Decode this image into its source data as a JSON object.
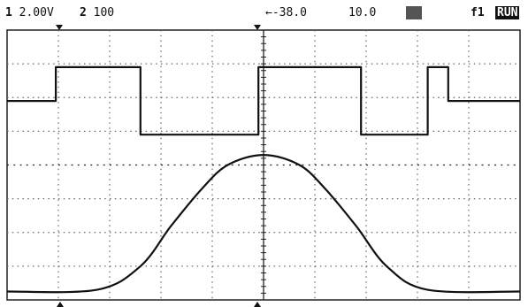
{
  "status": {
    "ch1_num": "1",
    "ch1_scale": "2.00V",
    "ch2_num": "2",
    "ch2_scale": "100",
    "delay": "←-38.0",
    "timebase": "10.0",
    "acq": "",
    "trig_source": "f1",
    "run_state": "RUN"
  },
  "scope": {
    "divisions_x": 10,
    "divisions_y": 8,
    "trace_color": "#111111",
    "grid_color": "#666666"
  },
  "chart_data": {
    "type": "line",
    "title": "",
    "xlabel": "",
    "ylabel": "",
    "xlim": [
      0,
      10
    ],
    "ylim": [
      0,
      8
    ],
    "series": [
      {
        "points": [
          [
            0,
            5.9
          ],
          [
            0.95,
            5.9
          ],
          [
            0.95,
            6.9
          ],
          [
            2.6,
            6.9
          ],
          [
            2.6,
            4.9
          ],
          [
            4.9,
            4.9
          ],
          [
            4.9,
            6.9
          ],
          [
            6.9,
            6.9
          ],
          [
            6.9,
            4.9
          ],
          [
            8.2,
            4.9
          ],
          [
            8.2,
            6.9
          ],
          [
            8.6,
            6.9
          ],
          [
            8.6,
            5.9
          ],
          [
            10,
            5.9
          ]
        ]
      },
      {
        "points": [
          [
            0,
            0.25
          ],
          [
            1.75,
            0.3
          ],
          [
            2.6,
            1.0
          ],
          [
            3.2,
            2.2
          ],
          [
            3.8,
            3.3
          ],
          [
            4.3,
            4.0
          ],
          [
            5.0,
            4.3
          ],
          [
            5.7,
            4.0
          ],
          [
            6.2,
            3.3
          ],
          [
            6.8,
            2.2
          ],
          [
            7.4,
            1.0
          ],
          [
            8.2,
            0.3
          ],
          [
            10,
            0.25
          ]
        ]
      }
    ]
  }
}
